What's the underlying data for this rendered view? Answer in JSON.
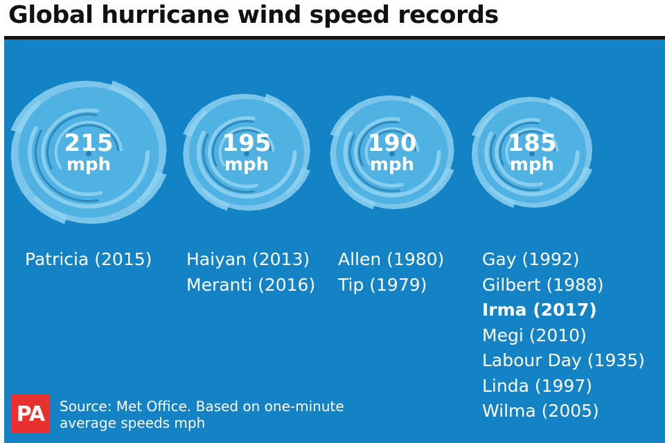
{
  "title": "Global hurricane wind speed records",
  "unit": "mph",
  "colors": {
    "panel": "#1483c6",
    "storm_core": "#4fb2e3",
    "storm_light": "#8ed1f0",
    "storm_shadow": "#0d5f98",
    "logo": "#e8312f"
  },
  "chart_data": {
    "type": "pictograph",
    "title": "Global hurricane wind speed records",
    "unit": "mph",
    "categories": [
      "215",
      "195",
      "190",
      "185"
    ],
    "values": [
      215,
      195,
      190,
      185
    ],
    "groups": [
      {
        "speed": 215,
        "storms": [
          {
            "text": "Patricia (2015)",
            "bold": false
          }
        ]
      },
      {
        "speed": 195,
        "storms": [
          {
            "text": "Haiyan (2013)",
            "bold": false
          },
          {
            "text": "Meranti (2016)",
            "bold": false
          }
        ]
      },
      {
        "speed": 190,
        "storms": [
          {
            "text": "Allen (1980)",
            "bold": false
          },
          {
            "text": "Tip (1979)",
            "bold": false
          }
        ]
      },
      {
        "speed": 185,
        "storms": [
          {
            "text": "Gay (1992)",
            "bold": false
          },
          {
            "text": "Gilbert (1988)",
            "bold": false
          },
          {
            "text": "Irma (2017)",
            "bold": true
          },
          {
            "text": "Megi (2010)",
            "bold": false
          },
          {
            "text": "Labour Day (1935)",
            "bold": false
          },
          {
            "text": "Linda (1997)",
            "bold": false
          },
          {
            "text": "Wilma (2005)",
            "bold": false
          }
        ]
      }
    ]
  },
  "source": "Source: Met Office. Based on one-minute average speeds mph",
  "logo_text": "PA"
}
